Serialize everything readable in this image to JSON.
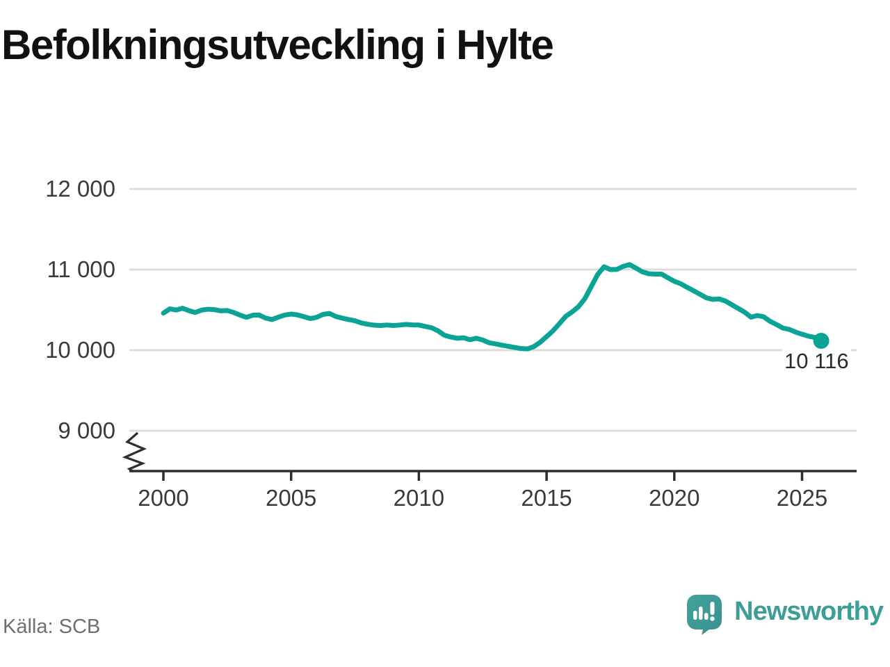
{
  "header": {
    "title": "Befolkningsutveckling i Hylte"
  },
  "source": {
    "label": "Källa: SCB"
  },
  "branding": {
    "name": "Newsworthy",
    "icon": "newsworthy-speech-bubble-chart-icon",
    "color": "#3d9e97"
  },
  "chart_data": {
    "type": "line",
    "title": "Befolkningsutveckling i Hylte",
    "xlabel": "",
    "ylabel": "",
    "x_ticks": [
      {
        "value": 2000,
        "label": "2000"
      },
      {
        "value": 2005,
        "label": "2005"
      },
      {
        "value": 2010,
        "label": "2010"
      },
      {
        "value": 2015,
        "label": "2015"
      },
      {
        "value": 2020,
        "label": "2020"
      },
      {
        "value": 2025,
        "label": "2025"
      }
    ],
    "y_ticks": [
      {
        "value": 12000,
        "label": "12 000"
      },
      {
        "value": 11000,
        "label": "11 000"
      },
      {
        "value": 10000,
        "label": "10 000"
      },
      {
        "value": 9000,
        "label": "9 000"
      }
    ],
    "ylim": [
      9000,
      12000
    ],
    "xlim": [
      1998.7,
      2027.1
    ],
    "grid": "horizontal",
    "legend": "none",
    "axis_break": true,
    "end_label": "10 116",
    "end_value": 10116,
    "colors": {
      "line": "#0ba396",
      "grid": "#dcdcdc",
      "axis": "#2e2e2e"
    },
    "series": [
      {
        "name": "Befolkning i Hylte",
        "x": [
          2000.0,
          2000.25,
          2000.5,
          2000.75,
          2001.0,
          2001.25,
          2001.5,
          2001.75,
          2002.0,
          2002.25,
          2002.5,
          2002.75,
          2003.0,
          2003.25,
          2003.5,
          2003.75,
          2004.0,
          2004.25,
          2004.5,
          2004.75,
          2005.0,
          2005.25,
          2005.5,
          2005.75,
          2006.0,
          2006.25,
          2006.5,
          2006.75,
          2007.0,
          2007.25,
          2007.5,
          2007.75,
          2008.0,
          2008.25,
          2008.5,
          2008.75,
          2009.0,
          2009.25,
          2009.5,
          2009.75,
          2010.0,
          2010.25,
          2010.5,
          2010.75,
          2011.0,
          2011.25,
          2011.5,
          2011.75,
          2012.0,
          2012.25,
          2012.5,
          2012.75,
          2013.0,
          2013.25,
          2013.5,
          2013.75,
          2014.0,
          2014.25,
          2014.5,
          2014.75,
          2015.0,
          2015.25,
          2015.5,
          2015.75,
          2016.0,
          2016.25,
          2016.5,
          2016.75,
          2017.0,
          2017.25,
          2017.5,
          2017.75,
          2018.0,
          2018.25,
          2018.5,
          2018.75,
          2019.0,
          2019.25,
          2019.5,
          2019.75,
          2020.0,
          2020.25,
          2020.5,
          2020.75,
          2021.0,
          2021.25,
          2021.5,
          2021.75,
          2022.0,
          2022.25,
          2022.5,
          2022.75,
          2023.0,
          2023.25,
          2023.5,
          2023.75,
          2024.0,
          2024.25,
          2024.5,
          2024.75,
          2025.0,
          2025.25,
          2025.5,
          2025.75
        ],
        "values": [
          10460,
          10512,
          10498,
          10520,
          10490,
          10468,
          10498,
          10508,
          10503,
          10488,
          10492,
          10468,
          10435,
          10408,
          10434,
          10436,
          10398,
          10380,
          10410,
          10436,
          10448,
          10438,
          10416,
          10392,
          10408,
          10444,
          10456,
          10418,
          10398,
          10380,
          10365,
          10338,
          10322,
          10310,
          10306,
          10312,
          10306,
          10312,
          10320,
          10314,
          10312,
          10295,
          10278,
          10240,
          10185,
          10163,
          10148,
          10154,
          10130,
          10148,
          10126,
          10092,
          10078,
          10062,
          10048,
          10034,
          10020,
          10016,
          10044,
          10098,
          10168,
          10240,
          10328,
          10420,
          10475,
          10540,
          10640,
          10790,
          10940,
          11035,
          11000,
          11002,
          11040,
          11062,
          11018,
          10972,
          10948,
          10944,
          10944,
          10898,
          10855,
          10824,
          10780,
          10738,
          10694,
          10650,
          10630,
          10636,
          10610,
          10564,
          10518,
          10472,
          10410,
          10430,
          10414,
          10358,
          10318,
          10274,
          10258,
          10224,
          10198,
          10174,
          10158,
          10116
        ]
      }
    ]
  }
}
